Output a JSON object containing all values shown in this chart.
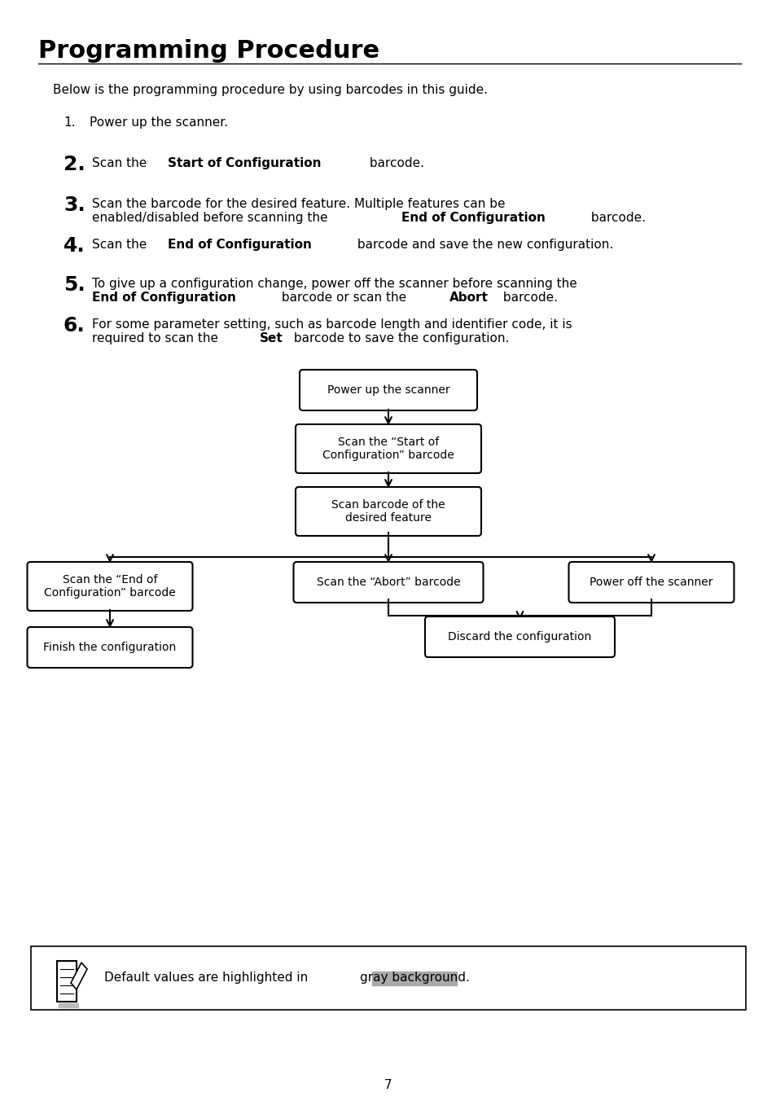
{
  "title": "Programming Procedure",
  "bg_color": "#ffffff",
  "text_color": "#000000",
  "intro": "Below is the programming procedure by using barcodes in this guide.",
  "flowchart": {
    "box1": "Power up the scanner",
    "box2": "Scan the “Start of\nConfiguration” barcode",
    "box3": "Scan barcode of the\ndesired feature",
    "box_left": "Scan the “End of\nConfiguration” barcode",
    "box_mid": "Scan the “Abort” barcode",
    "box_right": "Power off the scanner",
    "box_finish": "Finish the configuration",
    "box_discard": "Discard the configuration"
  },
  "note_before": "Default values are highlighted in ",
  "note_highlight": "gray background.",
  "page_num": "7"
}
